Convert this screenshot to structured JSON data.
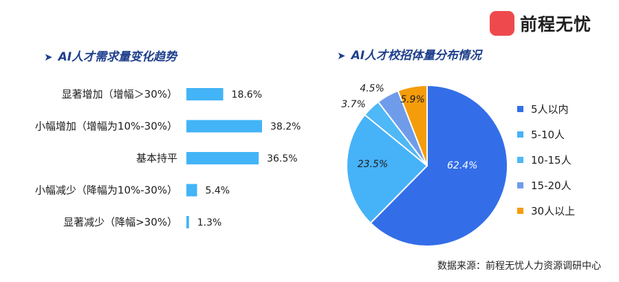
{
  "brand": {
    "name": "前程无忧"
  },
  "source_note": "数据来源：前程无忧人力资源调研中心",
  "colors": {
    "bar": "#43b4f7",
    "heading": "#1e3f8c"
  },
  "chart_data": [
    {
      "type": "bar",
      "orientation": "horizontal",
      "title": "AI人才需求量变化趋势",
      "categories": [
        "显著增加（增幅＞30%）",
        "小幅增加（增幅为10%-30%）",
        "基本持平",
        "小幅减少（降幅为10%-30%）",
        "显著减少（降幅>30%）"
      ],
      "values": [
        18.6,
        38.2,
        36.5,
        5.4,
        1.3
      ],
      "value_labels": [
        "18.6%",
        "38.2%",
        "36.5%",
        "5.4%",
        "1.3%"
      ],
      "xlim": [
        0,
        40
      ],
      "grid": false
    },
    {
      "type": "pie",
      "title": "AI人才校招体量分布情况",
      "labels": [
        "5人以内",
        "5-10人",
        "10-15人",
        "15-20人",
        "30人以上"
      ],
      "values": [
        62.4,
        23.5,
        3.7,
        4.5,
        5.9
      ],
      "value_labels": [
        "62.4%",
        "23.5%",
        "3.7%",
        "4.5%",
        "5.9%"
      ],
      "colors": [
        "#336ee8",
        "#46b2f8",
        "#4fb8f6",
        "#6f9cea",
        "#f59c0b"
      ],
      "legend": "right"
    }
  ]
}
